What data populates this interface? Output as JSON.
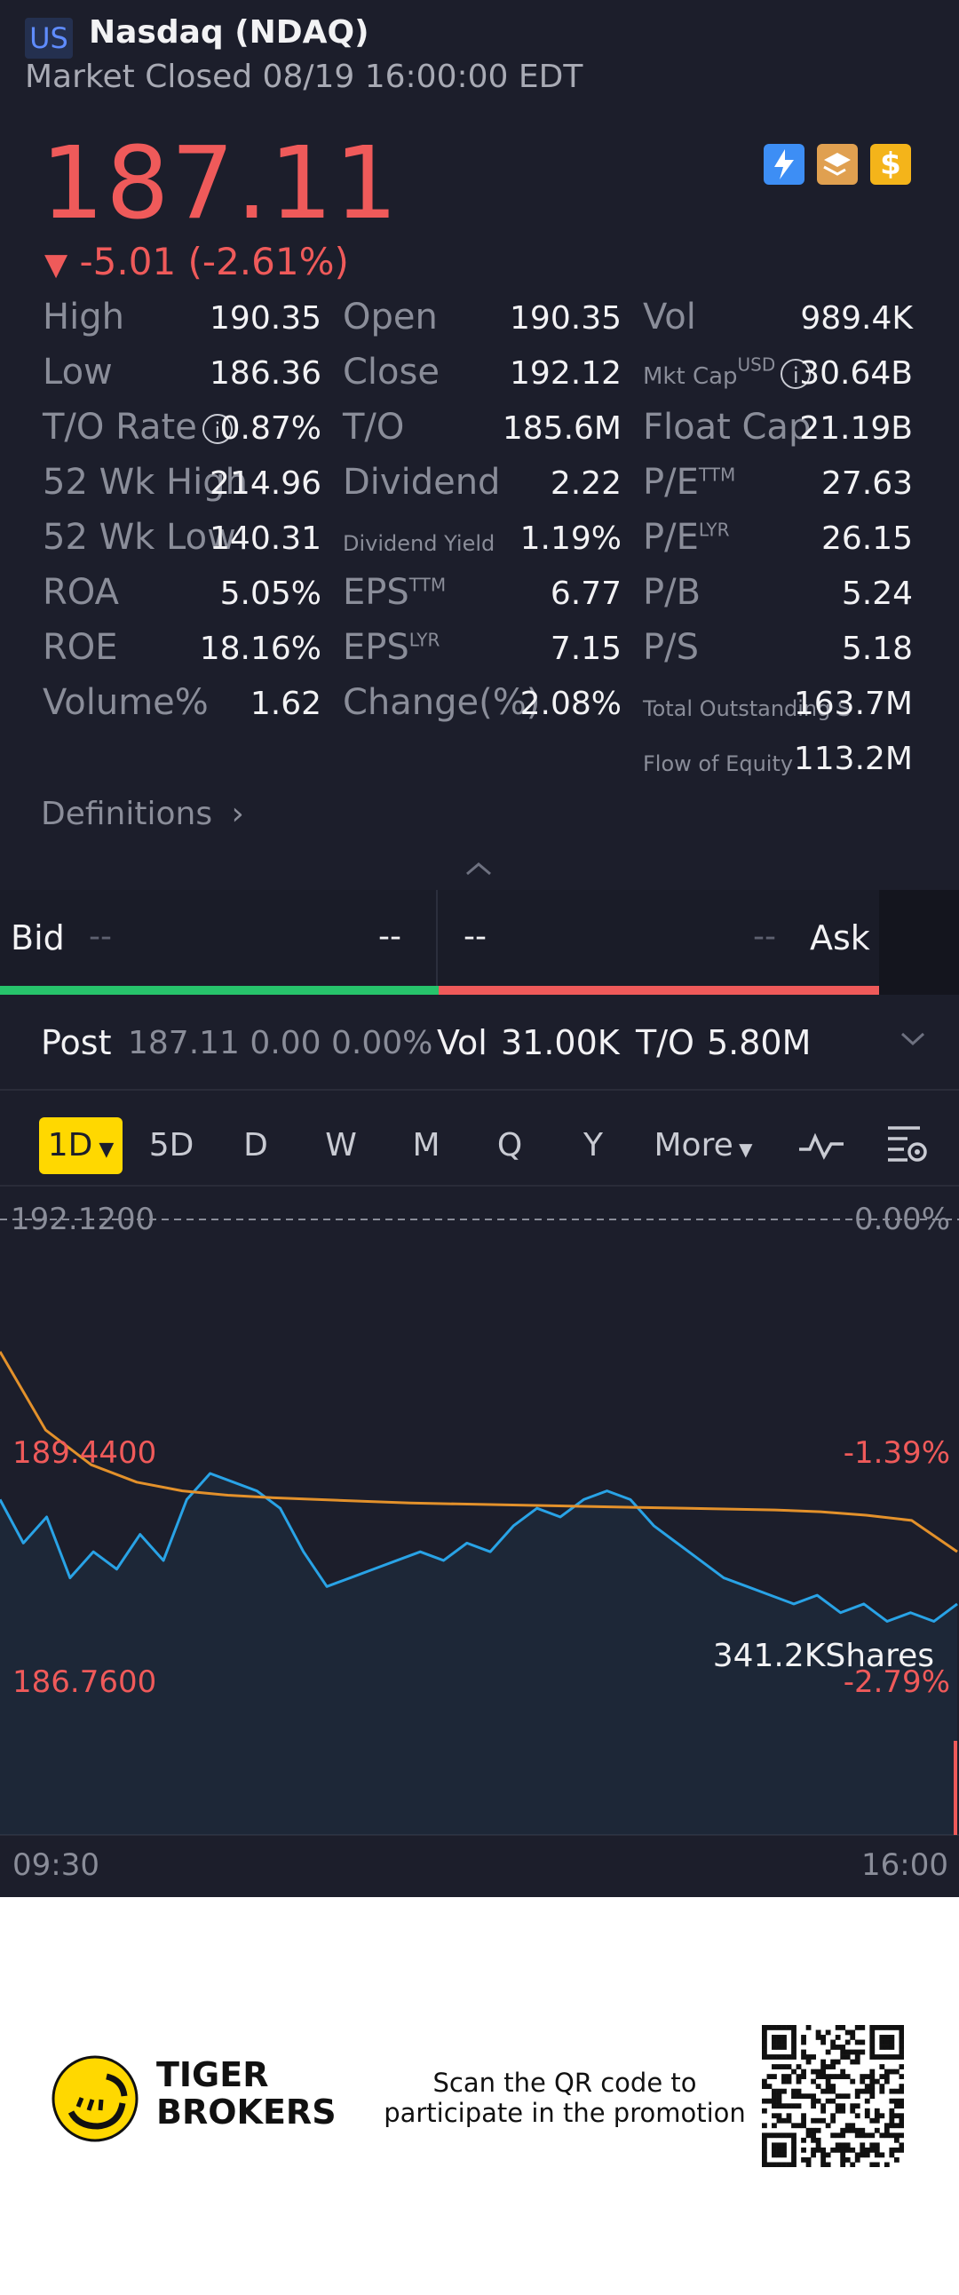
{
  "header": {
    "market_tag": "US",
    "title": "Nasdaq (NDAQ)",
    "status": "Market Closed 08/19 16:00:00 EDT"
  },
  "quote": {
    "price": "187.11",
    "arrow": "▼",
    "change": "-5.01 (-2.61%)"
  },
  "stats": {
    "col1": [
      {
        "label": "High",
        "value": "190.35"
      },
      {
        "label": "Low",
        "value": "186.36"
      },
      {
        "label": "T/O Rate",
        "value": "0.87%"
      },
      {
        "label": "52 Wk High",
        "value": "214.96"
      },
      {
        "label": "52 Wk Low",
        "value": "140.31"
      },
      {
        "label": "ROA",
        "value": "5.05%"
      },
      {
        "label": "ROE",
        "value": "18.16%"
      },
      {
        "label": "Volume%",
        "value": "1.62"
      }
    ],
    "col2": [
      {
        "label": "Open",
        "value": "190.35"
      },
      {
        "label": "Close",
        "value": "192.12"
      },
      {
        "label": "T/O",
        "value": "185.6M"
      },
      {
        "label": "Dividend",
        "value": "2.22"
      },
      {
        "label": "Dividend Yield",
        "value": "1.19%"
      },
      {
        "label": "EPS",
        "sup": "TTM",
        "value": "6.77"
      },
      {
        "label": "EPS",
        "sup": "LYR",
        "value": "7.15"
      },
      {
        "label": "Change(%)",
        "value": "2.08%"
      }
    ],
    "col3": [
      {
        "label": "Vol",
        "value": "989.4K"
      },
      {
        "label": "Mkt Cap",
        "sup": "USD",
        "value": "30.64B"
      },
      {
        "label": "Float Cap",
        "value": "21.19B"
      },
      {
        "label": "P/E",
        "sup": "TTM",
        "value": "27.63"
      },
      {
        "label": "P/E",
        "sup": "LYR",
        "value": "26.15"
      },
      {
        "label": "P/B",
        "value": "5.24"
      },
      {
        "label": "P/S",
        "value": "5.18"
      },
      {
        "label": "Total Outstanding S",
        "value": "163.7M"
      },
      {
        "label": "Flow of Equity",
        "value": "113.2M"
      }
    ]
  },
  "definitions_label": "Definitions",
  "orderbook": {
    "bid_label": "Bid",
    "bid_price": "--",
    "bid_size": "--",
    "ask_price": "--",
    "ask_size": "--",
    "ask_label": "Ask"
  },
  "post": {
    "label": "Post",
    "price_change": "187.11 0.00 0.00%",
    "vol_label": "Vol",
    "vol_value": "31.00K",
    "to_label": "T/O",
    "to_value": "5.80M"
  },
  "tabs": [
    "1D",
    "5D",
    "D",
    "W",
    "M",
    "Q",
    "Y",
    "More"
  ],
  "chart": {
    "prev_close": "192.1200",
    "prev_close_pct": "0.00%",
    "mid_price": "189.4400",
    "mid_pct": "-1.39%",
    "low_price": "186.7600",
    "low_pct": "-2.79%",
    "volume_label": "341.2KShares",
    "time_start": "09:30",
    "time_end": "16:00"
  },
  "chart_data": {
    "type": "line",
    "x_range": [
      "09:30",
      "16:00"
    ],
    "ylim": [
      186.76,
      192.12
    ],
    "series": [
      {
        "color": "#29a3e6",
        "values": [
          188.9,
          188.4,
          188.7,
          188.0,
          188.3,
          188.1,
          188.5,
          188.2,
          188.9,
          189.2,
          189.1,
          189.0,
          188.8,
          188.3,
          187.9,
          188.0,
          188.1,
          188.2,
          188.3,
          188.2,
          188.4,
          188.3,
          188.6,
          188.8,
          188.7,
          188.9,
          189.0,
          188.9,
          188.6,
          188.4,
          188.2,
          188.0,
          187.9,
          187.8,
          187.7,
          187.8,
          187.6,
          187.7,
          187.5,
          187.6,
          187.5,
          187.7
        ]
      },
      {
        "color": "#e3912b",
        "values": [
          190.6,
          189.7,
          189.3,
          189.1,
          189.0,
          188.95,
          188.92,
          188.9,
          188.88,
          188.86,
          188.85,
          188.84,
          188.83,
          188.82,
          188.81,
          188.8,
          188.79,
          188.78,
          188.76,
          188.72,
          188.66,
          188.3
        ]
      }
    ]
  },
  "footer": {
    "brand_line1": "TIGER",
    "brand_line2": "BROKERS",
    "promo_line1": "Scan the QR code to",
    "promo_line2": "participate in the promotion"
  },
  "colors": {
    "background": "#1c1e2b",
    "up": "#27c36b",
    "down": "#ef5a5a",
    "accent": "#ffd800"
  }
}
